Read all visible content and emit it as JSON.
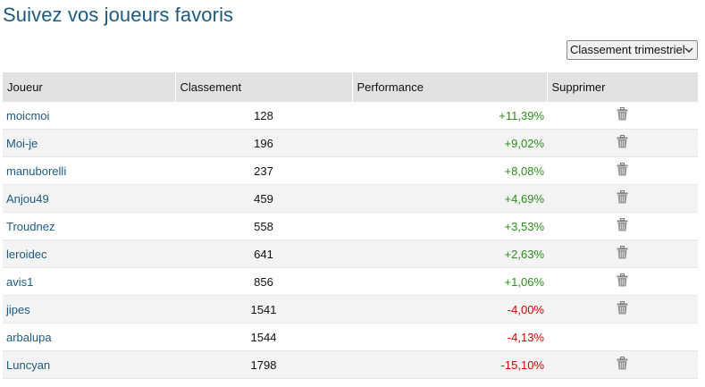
{
  "header": {
    "title": "Suivez vos joueurs favoris"
  },
  "filter": {
    "label": "Classement trimestriel"
  },
  "table": {
    "columns": [
      "Joueur",
      "Classement",
      "Performance",
      "Supprimer"
    ],
    "rows": [
      {
        "player": "moicmoi",
        "rank": 128,
        "performance": "+11,39%",
        "trend": "up",
        "delete": true
      },
      {
        "player": "Moi-je",
        "rank": 196,
        "performance": "+9,02%",
        "trend": "up",
        "delete": true
      },
      {
        "player": "manuborelli",
        "rank": 237,
        "performance": "+8,08%",
        "trend": "up",
        "delete": true
      },
      {
        "player": "Anjou49",
        "rank": 459,
        "performance": "+4,69%",
        "trend": "up",
        "delete": true
      },
      {
        "player": "Troudnez",
        "rank": 558,
        "performance": "+3,53%",
        "trend": "up",
        "delete": true
      },
      {
        "player": "leroidec",
        "rank": 641,
        "performance": "+2,63%",
        "trend": "up",
        "delete": true
      },
      {
        "player": "avis1",
        "rank": 856,
        "performance": "+1,06%",
        "trend": "up",
        "delete": true
      },
      {
        "player": "jipes",
        "rank": 1541,
        "performance": "-4,00%",
        "trend": "down",
        "delete": true
      },
      {
        "player": "arbalupa",
        "rank": 1544,
        "performance": "-4,13%",
        "trend": "down",
        "delete": false
      },
      {
        "player": "Luncyan",
        "rank": 1798,
        "performance": "-15,10%",
        "trend": "down",
        "delete": true
      }
    ]
  }
}
